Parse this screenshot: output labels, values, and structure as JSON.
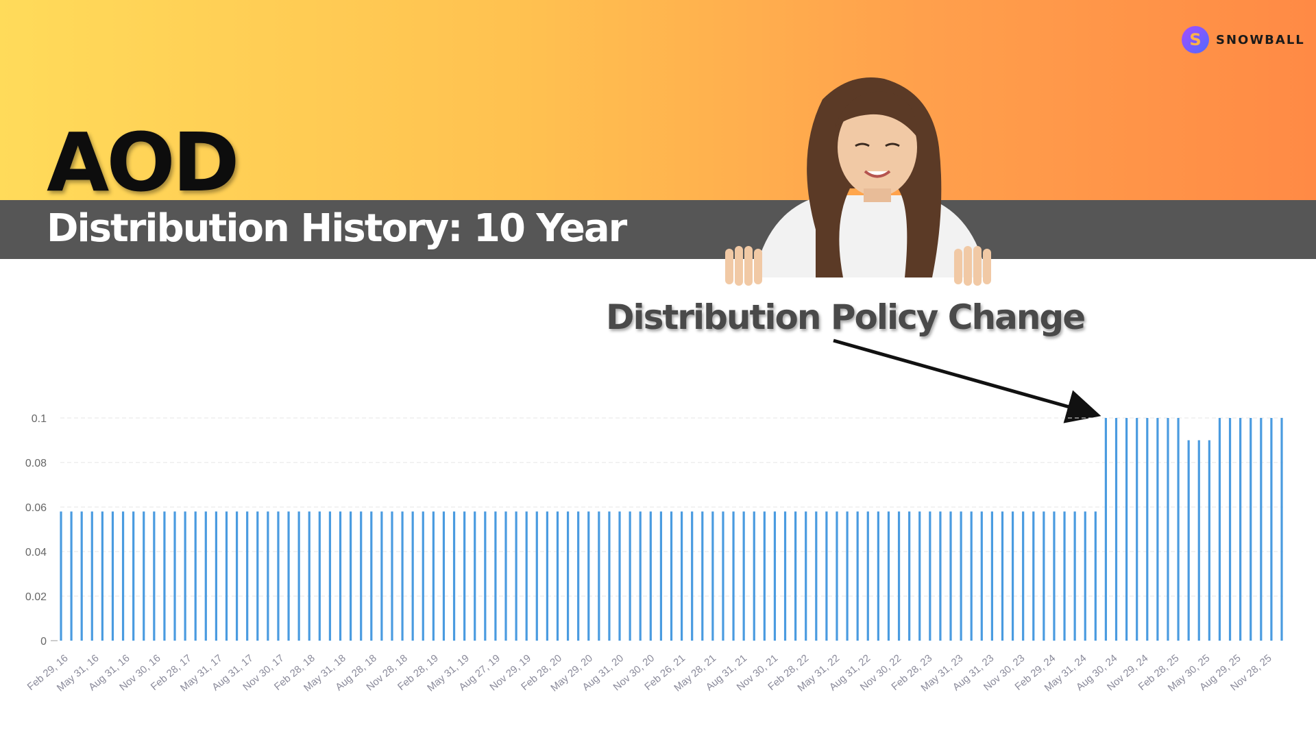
{
  "header": {
    "ticker": "AOD",
    "subtitle": "Distribution History: 10 Year",
    "brand_name": "SNOWBALL",
    "brand_icon_letter": "S",
    "gradient_start": "#ffdb5a",
    "gradient_end": "#ff8a45",
    "band_color": "#565656"
  },
  "annotation": {
    "text": "Distribution Policy Change",
    "arrow_icon": "arrow-right-down"
  },
  "chart_data": {
    "type": "bar",
    "bar_color": "#4a9be0",
    "ylim": [
      0,
      0.1
    ],
    "y_ticks": [
      "0",
      "0.02",
      "0.04",
      "0.06",
      "0.08",
      "0.1"
    ],
    "grid": true,
    "x_tick_labels": [
      "Feb 29, 16",
      "May 31, 16",
      "Aug 31, 16",
      "Nov 30, 16",
      "Feb 28, 17",
      "May 31, 17",
      "Aug 31, 17",
      "Nov 30, 17",
      "Feb 28, 18",
      "May 31, 18",
      "Aug 28, 18",
      "Nov 28, 18",
      "Feb 28, 19",
      "May 31, 19",
      "Aug 27, 19",
      "Nov 29, 19",
      "Feb 28, 20",
      "May 29, 20",
      "Aug 31, 20",
      "Nov 30, 20",
      "Feb 26, 21",
      "May 28, 21",
      "Aug 31, 21",
      "Nov 30, 21",
      "Feb 28, 22",
      "May 31, 22",
      "Aug 31, 22",
      "Nov 30, 22",
      "Feb 28, 23",
      "May 31, 23",
      "Aug 31, 23",
      "Nov 30, 23",
      "Feb 29, 24",
      "May 31, 24",
      "Aug 30, 24",
      "Nov 29, 24",
      "Feb 28, 25",
      "May 30, 25",
      "Aug 29, 25",
      "Nov 28, 25"
    ],
    "values": [
      0.058,
      0.058,
      0.058,
      0.058,
      0.058,
      0.058,
      0.058,
      0.058,
      0.058,
      0.058,
      0.058,
      0.058,
      0.058,
      0.058,
      0.058,
      0.058,
      0.058,
      0.058,
      0.058,
      0.058,
      0.058,
      0.058,
      0.058,
      0.058,
      0.058,
      0.058,
      0.058,
      0.058,
      0.058,
      0.058,
      0.058,
      0.058,
      0.058,
      0.058,
      0.058,
      0.058,
      0.058,
      0.058,
      0.058,
      0.058,
      0.058,
      0.058,
      0.058,
      0.058,
      0.058,
      0.058,
      0.058,
      0.058,
      0.058,
      0.058,
      0.058,
      0.058,
      0.058,
      0.058,
      0.058,
      0.058,
      0.058,
      0.058,
      0.058,
      0.058,
      0.058,
      0.058,
      0.058,
      0.058,
      0.058,
      0.058,
      0.058,
      0.058,
      0.058,
      0.058,
      0.058,
      0.058,
      0.058,
      0.058,
      0.058,
      0.058,
      0.058,
      0.058,
      0.058,
      0.058,
      0.058,
      0.058,
      0.058,
      0.058,
      0.058,
      0.058,
      0.058,
      0.058,
      0.058,
      0.058,
      0.058,
      0.058,
      0.058,
      0.058,
      0.058,
      0.058,
      0.058,
      0.058,
      0.058,
      0.058,
      0.058,
      0.1,
      0.1,
      0.1,
      0.1,
      0.1,
      0.1,
      0.1,
      0.1,
      0.09,
      0.09,
      0.09,
      0.1,
      0.1,
      0.1,
      0.1,
      0.1,
      0.1,
      0.1
    ]
  }
}
